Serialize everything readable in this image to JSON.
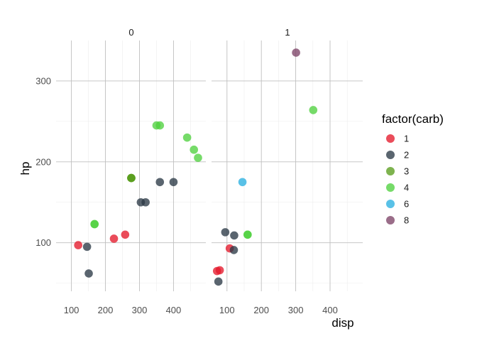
{
  "chart_data": {
    "type": "scatter",
    "title": "",
    "xlabel": "disp",
    "ylabel": "hp",
    "xlim": [
      55,
      495
    ],
    "ylim": [
      40,
      350
    ],
    "x_ticks": [
      100,
      200,
      300,
      400
    ],
    "y_ticks": [
      100,
      200,
      300
    ],
    "grid": true,
    "legend_title": "factor(carb)",
    "legend_position": "right",
    "facets": [
      "0",
      "1"
    ],
    "groups": [
      {
        "name": "1",
        "color": "#E41A2B"
      },
      {
        "name": "2",
        "color": "#2B3A47"
      },
      {
        "name": "3",
        "color": "#5A9E1E"
      },
      {
        "name": "4",
        "color": "#4FD13F"
      },
      {
        "name": "6",
        "color": "#2AB0E0"
      },
      {
        "name": "8",
        "color": "#7E4468"
      }
    ],
    "points": [
      {
        "facet": "0",
        "carb": "1",
        "x": 120,
        "y": 97
      },
      {
        "facet": "0",
        "carb": "1",
        "x": 225,
        "y": 105
      },
      {
        "facet": "0",
        "carb": "1",
        "x": 258,
        "y": 110
      },
      {
        "facet": "0",
        "carb": "2",
        "x": 146,
        "y": 95
      },
      {
        "facet": "0",
        "carb": "2",
        "x": 151,
        "y": 62
      },
      {
        "facet": "0",
        "carb": "2",
        "x": 304,
        "y": 150
      },
      {
        "facet": "0",
        "carb": "2",
        "x": 318,
        "y": 150
      },
      {
        "facet": "0",
        "carb": "2",
        "x": 360,
        "y": 175
      },
      {
        "facet": "0",
        "carb": "2",
        "x": 400,
        "y": 175
      },
      {
        "facet": "0",
        "carb": "3",
        "x": 276,
        "y": 180
      },
      {
        "facet": "0",
        "carb": "3",
        "x": 276,
        "y": 180
      },
      {
        "facet": "0",
        "carb": "3",
        "x": 276,
        "y": 180
      },
      {
        "facet": "0",
        "carb": "4",
        "x": 168,
        "y": 123
      },
      {
        "facet": "0",
        "carb": "4",
        "x": 168,
        "y": 123
      },
      {
        "facet": "0",
        "carb": "4",
        "x": 350,
        "y": 245
      },
      {
        "facet": "0",
        "carb": "4",
        "x": 360,
        "y": 245
      },
      {
        "facet": "0",
        "carb": "4",
        "x": 440,
        "y": 230
      },
      {
        "facet": "0",
        "carb": "4",
        "x": 460,
        "y": 215
      },
      {
        "facet": "0",
        "carb": "4",
        "x": 472,
        "y": 205
      },
      {
        "facet": "1",
        "carb": "1",
        "x": 71,
        "y": 65
      },
      {
        "facet": "1",
        "carb": "1",
        "x": 79,
        "y": 66
      },
      {
        "facet": "1",
        "carb": "1",
        "x": 108,
        "y": 93
      },
      {
        "facet": "1",
        "carb": "2",
        "x": 75,
        "y": 52
      },
      {
        "facet": "1",
        "carb": "2",
        "x": 95,
        "y": 113
      },
      {
        "facet": "1",
        "carb": "2",
        "x": 120,
        "y": 91
      },
      {
        "facet": "1",
        "carb": "2",
        "x": 121,
        "y": 109
      },
      {
        "facet": "1",
        "carb": "4",
        "x": 160,
        "y": 110
      },
      {
        "facet": "1",
        "carb": "4",
        "x": 160,
        "y": 110
      },
      {
        "facet": "1",
        "carb": "4",
        "x": 351,
        "y": 264
      },
      {
        "facet": "1",
        "carb": "6",
        "x": 145,
        "y": 175
      },
      {
        "facet": "1",
        "carb": "8",
        "x": 301,
        "y": 335
      }
    ]
  }
}
